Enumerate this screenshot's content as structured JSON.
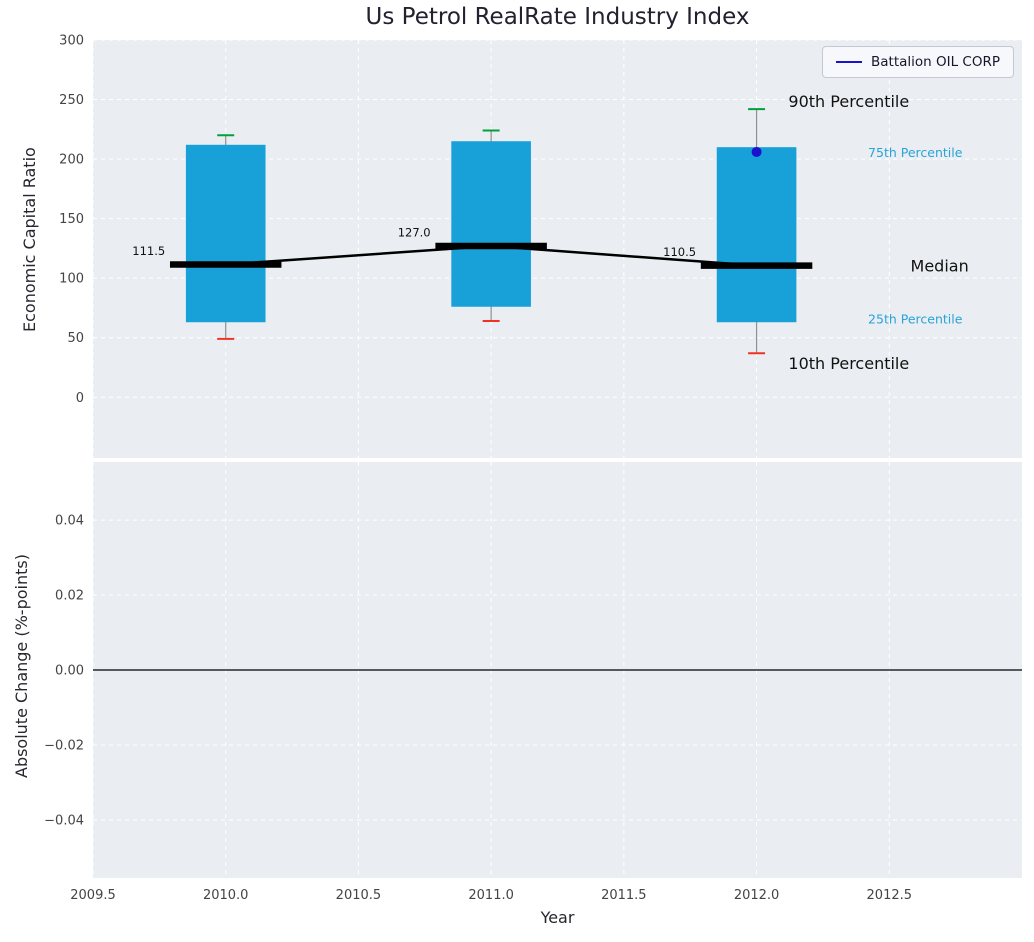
{
  "title": "Us Petrol RealRate Industry Index",
  "xlabel": "Year",
  "legend": {
    "label": "Battalion OIL CORP"
  },
  "colors": {
    "axes_bg": "#eaeef2",
    "grid": "#ffffff",
    "bar": "#18a1d9",
    "whisker": "#909090",
    "p90": "#00a03a",
    "p10": "#f03225",
    "median": "#000000",
    "company": "#1a12cc",
    "accent_text": "#29a3d9",
    "tick_text": "#444444",
    "annotation_text": "#111111"
  },
  "xlim": [
    2009.5,
    2013.0
  ],
  "xticks": [
    2009.5,
    2010.0,
    2010.5,
    2011.0,
    2011.5,
    2012.0,
    2012.5
  ],
  "xtick_labels": [
    "2009.5",
    "2010.0",
    "2010.5",
    "2011.0",
    "2011.5",
    "2012.0",
    "2012.5"
  ],
  "chart_data": [
    {
      "type": "bar",
      "subtype": "percentile-box-with-median-line",
      "ylabel": "Economic Capital Ratio",
      "ylim": [
        -51,
        300
      ],
      "yticks": [
        0,
        50,
        100,
        150,
        200,
        250,
        300
      ],
      "ytick_labels": [
        "0",
        "50",
        "100",
        "150",
        "200",
        "250",
        "300"
      ],
      "x": [
        2010,
        2011,
        2012
      ],
      "series": [
        {
          "name": "10th Percentile",
          "values": [
            49,
            64,
            37
          ]
        },
        {
          "name": "25th Percentile",
          "values": [
            63,
            76,
            63
          ]
        },
        {
          "name": "Median",
          "values": [
            111.5,
            127.0,
            110.5
          ]
        },
        {
          "name": "75th Percentile",
          "values": [
            212,
            215,
            210
          ]
        },
        {
          "name": "90th Percentile",
          "values": [
            220,
            224,
            242
          ]
        }
      ],
      "median_labels": [
        "111.5",
        "127.0",
        "110.5"
      ],
      "company_point": {
        "name": "Battalion OIL CORP",
        "x": 2012,
        "y": 206
      },
      "annotations": [
        {
          "text": "90th Percentile",
          "x": 2012.12,
          "y": 248,
          "style": "major"
        },
        {
          "text": "75th Percentile",
          "x": 2012.42,
          "y": 206,
          "style": "minor"
        },
        {
          "text": "Median",
          "x": 2012.58,
          "y": 110,
          "style": "major"
        },
        {
          "text": "25th Percentile",
          "x": 2012.42,
          "y": 66,
          "style": "minor"
        },
        {
          "text": "10th Percentile",
          "x": 2012.12,
          "y": 28,
          "style": "major"
        }
      ]
    },
    {
      "type": "line",
      "ylabel": "Absolute Change (%-points)",
      "ylim": [
        -0.0555,
        0.0555
      ],
      "yticks": [
        0.04,
        0.02,
        0.0,
        -0.02,
        -0.04
      ],
      "ytick_labels": [
        "0.04",
        "0.02",
        "0.00",
        "−0.02",
        "−0.04"
      ],
      "zero_line": 0.0
    }
  ]
}
